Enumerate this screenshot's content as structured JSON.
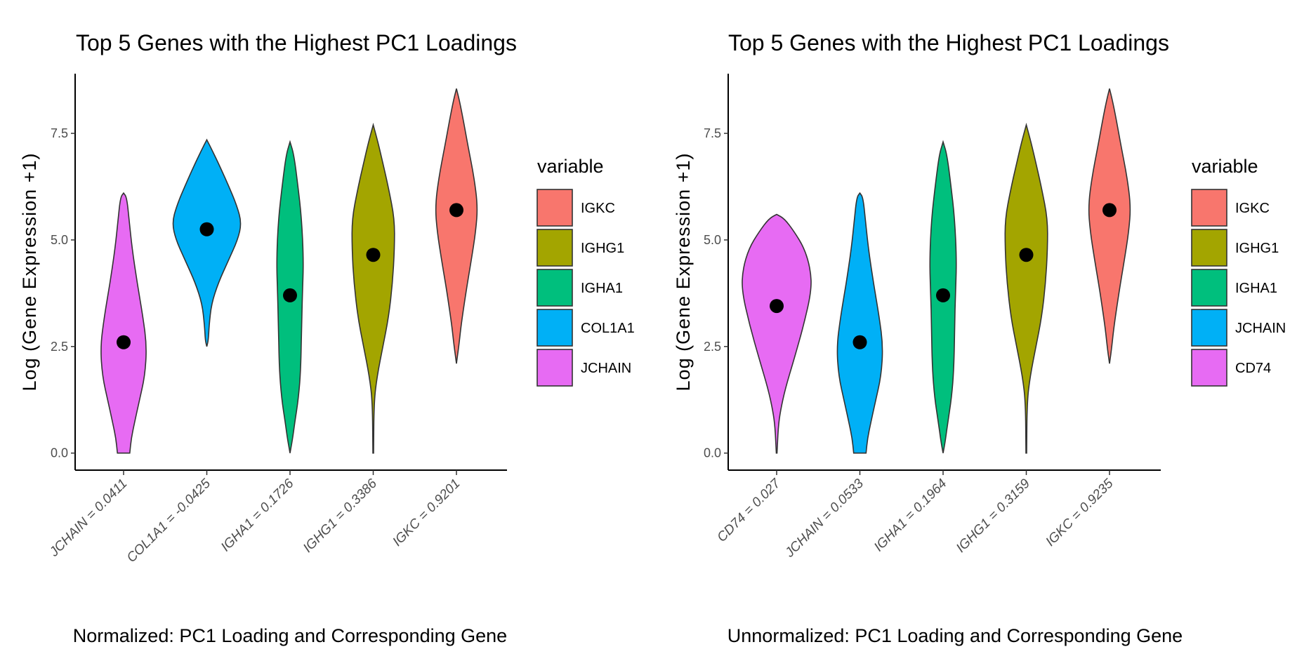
{
  "chart_data": [
    {
      "type": "violin",
      "title": "Top 5 Genes with the Highest PC1 Loadings",
      "xlabel": "Normalized: PC1 Loading and Corresponding Gene",
      "ylabel": "Log (Gene Expression +1)",
      "ylim": [
        -0.4,
        8.9
      ],
      "yticks": [
        "0.0",
        "2.5",
        "5.0",
        "7.5"
      ],
      "ytick_values": [
        0,
        2.5,
        5.0,
        7.5
      ],
      "categories": [
        "JCHAIN = 0.0411",
        "COL1A1 = -0.0425",
        "IGHA1 = 0.1726",
        "IGHG1 = 0.3386",
        "IGKC = 0.9201"
      ],
      "legend_title": "variable",
      "legend_position": "right",
      "grid": false,
      "series": [
        {
          "name": "JCHAIN",
          "color": "#E76BF3",
          "median": 2.6,
          "profile": [
            [
              0,
              0.16
            ],
            [
              0.35,
              0.2
            ],
            [
              0.7,
              0.28
            ],
            [
              1.2,
              0.4
            ],
            [
              1.8,
              0.55
            ],
            [
              2.5,
              0.6
            ],
            [
              3.2,
              0.5
            ],
            [
              4,
              0.35
            ],
            [
              4.8,
              0.22
            ],
            [
              5.5,
              0.14
            ],
            [
              6,
              0.08
            ],
            [
              6.1,
              0
            ]
          ]
        },
        {
          "name": "COL1A1",
          "color": "#00B0F6",
          "median": 5.25,
          "profile": [
            [
              2.5,
              0
            ],
            [
              2.65,
              0.04
            ],
            [
              3,
              0.06
            ],
            [
              3.5,
              0.12
            ],
            [
              4,
              0.3
            ],
            [
              4.5,
              0.55
            ],
            [
              5,
              0.8
            ],
            [
              5.4,
              0.9
            ],
            [
              5.8,
              0.78
            ],
            [
              6.3,
              0.55
            ],
            [
              6.8,
              0.3
            ],
            [
              7.1,
              0.14
            ],
            [
              7.35,
              0
            ]
          ]
        },
        {
          "name": "IGHA1",
          "color": "#00BF7D",
          "median": 3.7,
          "profile": [
            [
              0,
              0
            ],
            [
              0.3,
              0.06
            ],
            [
              0.7,
              0.12
            ],
            [
              1.3,
              0.22
            ],
            [
              2,
              0.28
            ],
            [
              3,
              0.3
            ],
            [
              3.7,
              0.32
            ],
            [
              4.5,
              0.35
            ],
            [
              5.5,
              0.3
            ],
            [
              6.3,
              0.2
            ],
            [
              7,
              0.1
            ],
            [
              7.3,
              0
            ]
          ]
        },
        {
          "name": "IGHG1",
          "color": "#A3A500",
          "median": 4.65,
          "profile": [
            [
              0,
              0.01
            ],
            [
              1.2,
              0.02
            ],
            [
              1.8,
              0.1
            ],
            [
              2.5,
              0.25
            ],
            [
              3.2,
              0.4
            ],
            [
              4,
              0.5
            ],
            [
              4.8,
              0.55
            ],
            [
              5.5,
              0.55
            ],
            [
              6.2,
              0.4
            ],
            [
              6.8,
              0.25
            ],
            [
              7.3,
              0.12
            ],
            [
              7.7,
              0
            ]
          ]
        },
        {
          "name": "IGKC",
          "color": "#F8766D",
          "median": 5.7,
          "profile": [
            [
              2.1,
              0
            ],
            [
              2.5,
              0.06
            ],
            [
              3,
              0.12
            ],
            [
              3.8,
              0.25
            ],
            [
              4.5,
              0.38
            ],
            [
              5.2,
              0.5
            ],
            [
              5.8,
              0.55
            ],
            [
              6.5,
              0.45
            ],
            [
              7.2,
              0.3
            ],
            [
              7.8,
              0.18
            ],
            [
              8.3,
              0.07
            ],
            [
              8.55,
              0
            ]
          ]
        }
      ],
      "legend_order": [
        "IGKC",
        "IGHG1",
        "IGHA1",
        "COL1A1",
        "JCHAIN"
      ]
    },
    {
      "type": "violin",
      "title": "Top 5 Genes with the Highest PC1 Loadings",
      "xlabel": "Unnormalized: PC1 Loading and Corresponding Gene",
      "ylabel": "Log (Gene Expression +1)",
      "ylim": [
        -0.4,
        8.9
      ],
      "yticks": [
        "0.0",
        "2.5",
        "5.0",
        "7.5"
      ],
      "ytick_values": [
        0,
        2.5,
        5.0,
        7.5
      ],
      "categories": [
        "CD74 = 0.027",
        "JCHAIN = 0.0533",
        "IGHA1 = 0.1964",
        "IGHG1 = 0.3159",
        "IGKC = 0.9235"
      ],
      "legend_title": "variable",
      "legend_position": "right",
      "grid": false,
      "series": [
        {
          "name": "CD74",
          "color": "#E76BF3",
          "median": 3.45,
          "profile": [
            [
              0,
              0.01
            ],
            [
              0.6,
              0.04
            ],
            [
              1,
              0.1
            ],
            [
              1.5,
              0.22
            ],
            [
              2.2,
              0.45
            ],
            [
              3,
              0.7
            ],
            [
              3.8,
              0.9
            ],
            [
              4.3,
              0.88
            ],
            [
              4.8,
              0.72
            ],
            [
              5.2,
              0.45
            ],
            [
              5.5,
              0.2
            ],
            [
              5.6,
              0
            ]
          ]
        },
        {
          "name": "JCHAIN",
          "color": "#00B0F6",
          "median": 2.6,
          "profile": [
            [
              0,
              0.16
            ],
            [
              0.35,
              0.2
            ],
            [
              0.7,
              0.28
            ],
            [
              1.2,
              0.4
            ],
            [
              1.8,
              0.55
            ],
            [
              2.5,
              0.6
            ],
            [
              3.2,
              0.5
            ],
            [
              4,
              0.35
            ],
            [
              4.8,
              0.22
            ],
            [
              5.5,
              0.14
            ],
            [
              6,
              0.08
            ],
            [
              6.1,
              0
            ]
          ]
        },
        {
          "name": "IGHA1",
          "color": "#00BF7D",
          "median": 3.7,
          "profile": [
            [
              0,
              0
            ],
            [
              0.3,
              0.06
            ],
            [
              0.7,
              0.12
            ],
            [
              1.3,
              0.22
            ],
            [
              2,
              0.28
            ],
            [
              3,
              0.3
            ],
            [
              3.7,
              0.32
            ],
            [
              4.5,
              0.35
            ],
            [
              5.5,
              0.3
            ],
            [
              6.3,
              0.2
            ],
            [
              7,
              0.1
            ],
            [
              7.3,
              0
            ]
          ]
        },
        {
          "name": "IGHG1",
          "color": "#A3A500",
          "median": 4.65,
          "profile": [
            [
              0,
              0.01
            ],
            [
              1.2,
              0.02
            ],
            [
              1.8,
              0.1
            ],
            [
              2.5,
              0.25
            ],
            [
              3.2,
              0.4
            ],
            [
              4,
              0.5
            ],
            [
              4.8,
              0.55
            ],
            [
              5.5,
              0.55
            ],
            [
              6.2,
              0.4
            ],
            [
              6.8,
              0.25
            ],
            [
              7.3,
              0.12
            ],
            [
              7.7,
              0
            ]
          ]
        },
        {
          "name": "IGKC",
          "color": "#F8766D",
          "median": 5.7,
          "profile": [
            [
              2.1,
              0
            ],
            [
              2.5,
              0.06
            ],
            [
              3,
              0.12
            ],
            [
              3.8,
              0.25
            ],
            [
              4.5,
              0.38
            ],
            [
              5.2,
              0.5
            ],
            [
              5.8,
              0.55
            ],
            [
              6.5,
              0.45
            ],
            [
              7.2,
              0.3
            ],
            [
              7.8,
              0.18
            ],
            [
              8.3,
              0.07
            ],
            [
              8.55,
              0
            ]
          ]
        }
      ],
      "legend_order": [
        "IGKC",
        "IGHG1",
        "IGHA1",
        "JCHAIN",
        "CD74"
      ]
    }
  ]
}
